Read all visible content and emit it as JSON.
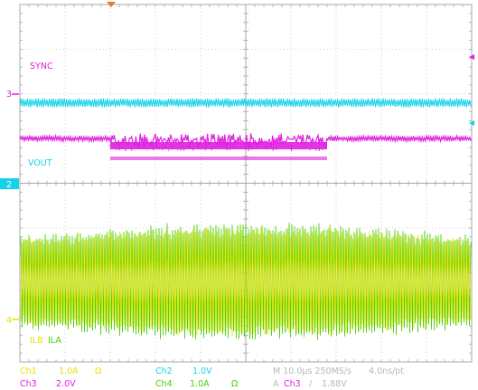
{
  "chart_data": {
    "type": "line",
    "title": "",
    "grid": true,
    "divisions": {
      "x": 10,
      "y": 8
    },
    "trigger_marker": "orange-down-triangle",
    "channels": [
      {
        "id": "ch3",
        "name": "SYNC",
        "color": "#e020e0",
        "marker": "3",
        "scale": "2.0V",
        "baseline_div": -1.0,
        "low_div": -1.0,
        "high_div": 0.8,
        "burst": {
          "start_div": -3.0,
          "end_div": 1.8
        }
      },
      {
        "id": "ch2",
        "name": "VOUT",
        "color": "#14d2e8",
        "marker": "2",
        "scale": "1.0V",
        "baseline_div": -1.8
      },
      {
        "id": "ch1",
        "name": "ILB",
        "color": "#e8e000",
        "marker": "",
        "scale": "1.0A",
        "center_div": 2.2,
        "amplitude_div": 1.2
      },
      {
        "id": "ch4",
        "name": "ILA",
        "color": "#48d000",
        "marker": "4",
        "scale": "1.0A",
        "center_div": 2.2,
        "amplitude_div": 1.3
      }
    ],
    "timebase": "10.0µs",
    "sample_rate": "250MS/s",
    "resolution": "4.0ns/pt",
    "trigger": {
      "source": "Ch3",
      "slope": "rising",
      "level": "1.88V"
    }
  },
  "status_bar": {
    "ch1_name": "Ch1",
    "ch1_scale": "1.0A",
    "ch1_unit": "Ω",
    "ch2_name": "Ch2",
    "ch2_scale": "1.0V",
    "ch3_name": "Ch3",
    "ch3_scale": "2.0V",
    "ch4_name": "Ch4",
    "ch4_scale": "1.0A",
    "ch4_unit": "Ω",
    "timebase_label": "M 10.0µs 250MS/s",
    "resolution_label": "4.0ns/pt",
    "trigger_prefix": "A",
    "trigger_source": "Ch3",
    "trigger_slope_symbol": "∕",
    "trigger_level": "1.88V"
  },
  "labels": {
    "sync": "SYNC",
    "vout": "VOUT",
    "ilb": "ILB",
    "ila": "ILA"
  },
  "markers": {
    "ch3": "3",
    "ch2": "2",
    "ch4": "4"
  }
}
